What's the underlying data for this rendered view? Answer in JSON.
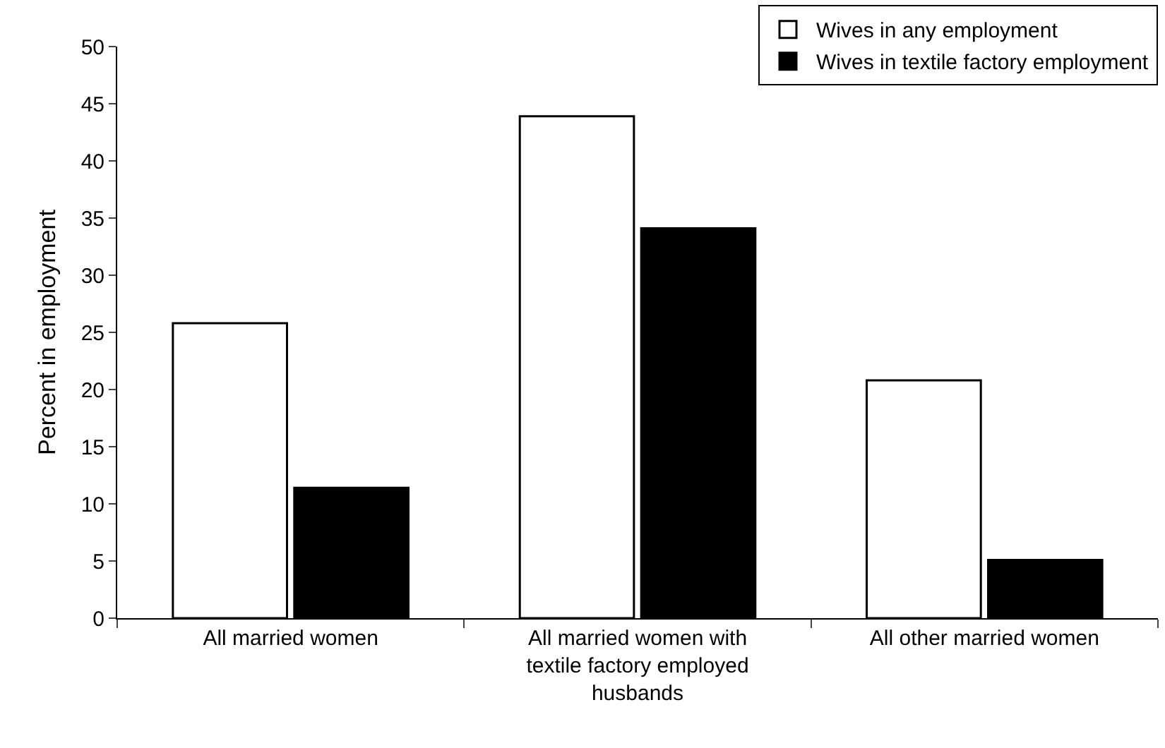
{
  "chart_data": {
    "type": "bar",
    "ylabel": "Percent in employment",
    "categories": [
      "All married women",
      "All married women with textile factory employed husbands",
      "All other married women"
    ],
    "series": [
      {
        "name": "Wives in any employment",
        "color": "#ffffff",
        "values": [
          25.8,
          43.9,
          20.8
        ]
      },
      {
        "name": "Wives in textile factory employment",
        "color": "#000000",
        "values": [
          11.4,
          34.1,
          5.1
        ]
      }
    ],
    "ylim": [
      0,
      50
    ],
    "yticks": [
      0,
      5,
      10,
      15,
      20,
      25,
      30,
      35,
      40,
      45,
      50
    ],
    "grid": false,
    "legend": "top right"
  }
}
